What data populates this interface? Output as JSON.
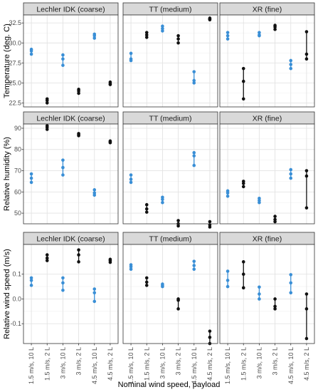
{
  "chart_data": {
    "type": "scatter",
    "facet_layout": "3 rows x 3 columns, faceted by nozzle (columns) and measurement (rows)",
    "xlabel": "Nominal wind speed, payload",
    "categories": [
      "1.5 m/s, 10 L",
      "1.5 m/s, 2 L",
      "3 m/s, 10 L",
      "3 m/s, 2 L",
      "4.5 m/s, 10 L",
      "4.5 m/s, 2 L"
    ],
    "category_colors": [
      "#3a8fd6",
      "#111111",
      "#3a8fd6",
      "#111111",
      "#3a8fd6",
      "#111111"
    ],
    "columns": [
      "Lechler IDK  (coarse)",
      "TT (medium)",
      "XR (fine)"
    ],
    "grid": true,
    "legend": "none",
    "rows": [
      {
        "ylabel": "Temperature (deg. C)",
        "ylim": [
          22.0,
          33.5
        ],
        "yticks": [
          22.5,
          25.0,
          27.5,
          30.0,
          32.5
        ],
        "ytick_labels": [
          "22.5",
          "25.0",
          "27.5",
          "30.0",
          "32.5"
        ],
        "panels": [
          [
            [
              28.6,
              29.0,
              29.2
            ],
            [
              22.5,
              22.8,
              23.0
            ],
            [
              27.2,
              28.0,
              28.5
            ],
            [
              23.7,
              24.0,
              24.2
            ],
            [
              30.6,
              30.9,
              31.1
            ],
            [
              24.8,
              24.9,
              25.1
            ]
          ],
          [
            [
              27.8,
              28.0,
              28.7
            ],
            [
              30.7,
              31.0,
              31.3
            ],
            [
              31.5,
              31.8,
              32.1
            ],
            [
              30.0,
              30.5,
              30.9
            ],
            [
              25.0,
              25.3,
              26.4
            ],
            [
              32.9,
              33.0,
              33.1
            ]
          ],
          [
            [
              30.5,
              30.9,
              31.3
            ],
            [
              23.0,
              25.2,
              26.8
            ],
            [
              30.9,
              31.0,
              31.3
            ],
            [
              31.7,
              32.0,
              32.2
            ],
            [
              26.8,
              27.3,
              27.8
            ],
            [
              28.0,
              28.6,
              31.4
            ]
          ]
        ]
      },
      {
        "ylabel": "Relative humidity (%)",
        "ylim": [
          45,
          92
        ],
        "yticks": [
          50,
          60,
          70,
          80,
          90
        ],
        "ytick_labels": [
          "50",
          "60",
          "70",
          "80",
          "90"
        ],
        "panels": [
          [
            [
              64.5,
              66.5,
              68.5
            ],
            [
              89.5,
              90.5,
              91.2
            ],
            [
              68.0,
              71.5,
              75.0
            ],
            [
              86.5,
              87.0,
              87.5
            ],
            [
              58.5,
              59.5,
              61.0
            ],
            [
              83.2,
              83.6,
              84.0
            ]
          ],
          [
            [
              64.5,
              66.0,
              68.0
            ],
            [
              50.5,
              52.0,
              54.0
            ],
            [
              55.0,
              56.5,
              57.5
            ],
            [
              44.0,
              45.0,
              46.5
            ],
            [
              72.5,
              77.0,
              78.5
            ],
            [
              43.5,
              44.5,
              46.0
            ]
          ],
          [
            [
              58.0,
              59.5,
              60.5
            ],
            [
              62.5,
              64.0,
              65.0
            ],
            [
              55.0,
              56.0,
              57.0
            ],
            [
              46.0,
              47.0,
              48.5
            ],
            [
              66.5,
              68.5,
              70.5
            ],
            [
              52.5,
              67.5,
              70.0
            ]
          ]
        ]
      },
      {
        "ylabel": "Relative wind speed (m/s)",
        "ylim": [
          -0.18,
          0.22
        ],
        "yticks": [
          -0.1,
          0.0,
          0.1
        ],
        "ytick_labels": [
          "-0.1",
          "0.0",
          "0.1"
        ],
        "panels": [
          [
            [
              0.055,
              0.075,
              0.085
            ],
            [
              0.155,
              0.165,
              0.178
            ],
            [
              0.035,
              0.065,
              0.085
            ],
            [
              0.15,
              0.178,
              0.198
            ],
            [
              -0.01,
              0.025,
              0.04
            ],
            [
              0.148,
              0.155,
              0.16
            ]
          ],
          [
            [
              0.12,
              0.13,
              0.138
            ],
            [
              0.055,
              0.068,
              0.085
            ],
            [
              0.05,
              0.055,
              0.06
            ],
            [
              -0.04,
              -0.005,
              0.0
            ],
            [
              0.12,
              0.135,
              0.152
            ],
            [
              -0.18,
              -0.155,
              -0.13
            ]
          ],
          [
            [
              0.05,
              0.075,
              0.112
            ],
            [
              0.045,
              0.1,
              0.15
            ],
            [
              0.0,
              0.02,
              0.048
            ],
            [
              -0.04,
              -0.03,
              0.0
            ],
            [
              0.025,
              0.065,
              0.098
            ],
            [
              -0.16,
              -0.04,
              0.02
            ]
          ]
        ]
      }
    ]
  }
}
